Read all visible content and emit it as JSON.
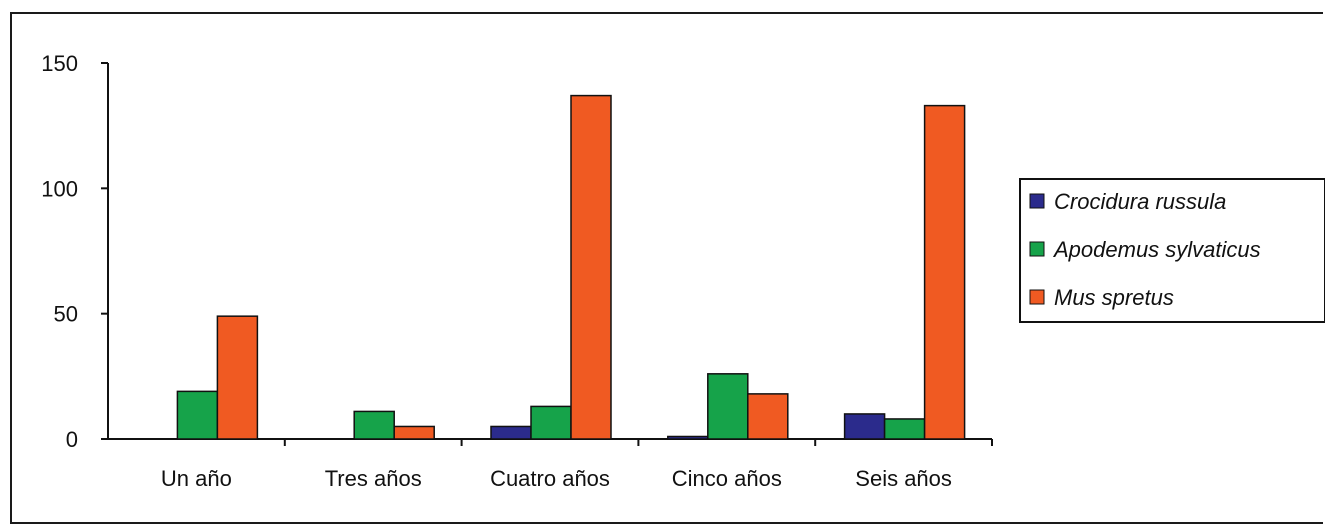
{
  "chart_data": {
    "type": "bar",
    "title": "",
    "xlabel": "",
    "ylabel": "",
    "categories": [
      "Un año",
      "Tres años",
      "Cuatro años",
      "Cinco años",
      "Seis años"
    ],
    "series": [
      {
        "name": "Crocidura russula",
        "color": "#2b2b8c",
        "values": [
          0,
          0,
          5,
          1,
          10
        ]
      },
      {
        "name": "Apodemus sylvaticus",
        "color": "#16a34a",
        "values": [
          19,
          11,
          13,
          26,
          8
        ]
      },
      {
        "name": "Mus spretus",
        "color": "#f05a22",
        "values": [
          49,
          5,
          137,
          18,
          133
        ]
      }
    ],
    "ylim": [
      0,
      150
    ],
    "yticks": [
      0,
      50,
      100,
      150
    ],
    "grid": false,
    "legend_position": "right"
  }
}
